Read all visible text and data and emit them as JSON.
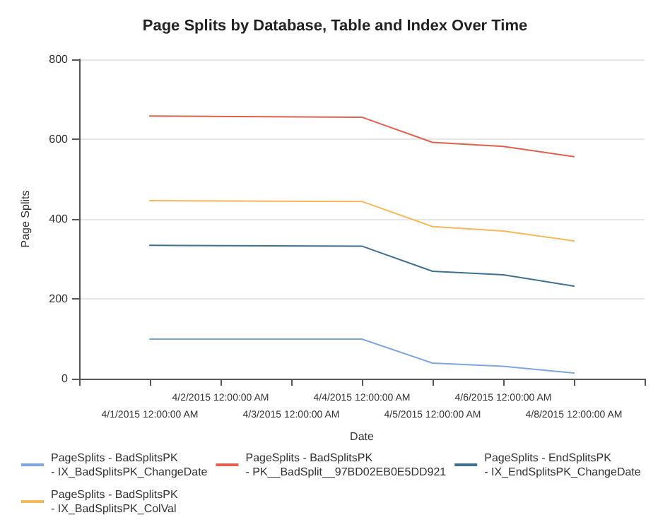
{
  "chart_data": {
    "type": "line",
    "title": "Page Splits by Database, Table and Index Over Time",
    "xlabel": "Date",
    "ylabel": "Page Splits",
    "categories": [
      null,
      "4/1/2015 12:00:00 AM",
      "4/2/2015 12:00:00 AM",
      "4/3/2015 12:00:00 AM",
      "4/4/2015 12:00:00 AM",
      "4/5/2015 12:00:00 AM",
      "4/6/2015 12:00:00 AM",
      "4/8/2015 12:00:00 AM",
      null
    ],
    "series": [
      {
        "name": "PageSplits - BadSplitsPK - IX_BadSplitsPK_ChangeDate",
        "color": "#7ea6df",
        "values": [
          null,
          99,
          null,
          null,
          99,
          39,
          31,
          14,
          null
        ]
      },
      {
        "name": "PageSplits - BadSplitsPK - PK__BadSplit__97BD02EB0E5DD921",
        "color": "#e0604f",
        "values": [
          null,
          658,
          null,
          null,
          655,
          592,
          582,
          556,
          null
        ]
      },
      {
        "name": "PageSplits - EndSplitsPK - IX_EndSplitsPK_ChangeDate",
        "color": "#3f6f8f",
        "values": [
          null,
          334,
          null,
          null,
          332,
          269,
          260,
          232,
          null
        ]
      },
      {
        "name": "PageSplits - BadSplitsPK - IX_BadSplitsPK_ColVal",
        "color": "#f5b85a",
        "values": [
          null,
          446,
          null,
          null,
          444,
          381,
          370,
          345,
          null
        ]
      }
    ],
    "ylim": [
      0,
      800
    ],
    "yticks": [
      0,
      200,
      400,
      600,
      800
    ],
    "grid": "y",
    "legend": "bottom",
    "marker": "none",
    "line_style": "solid"
  }
}
